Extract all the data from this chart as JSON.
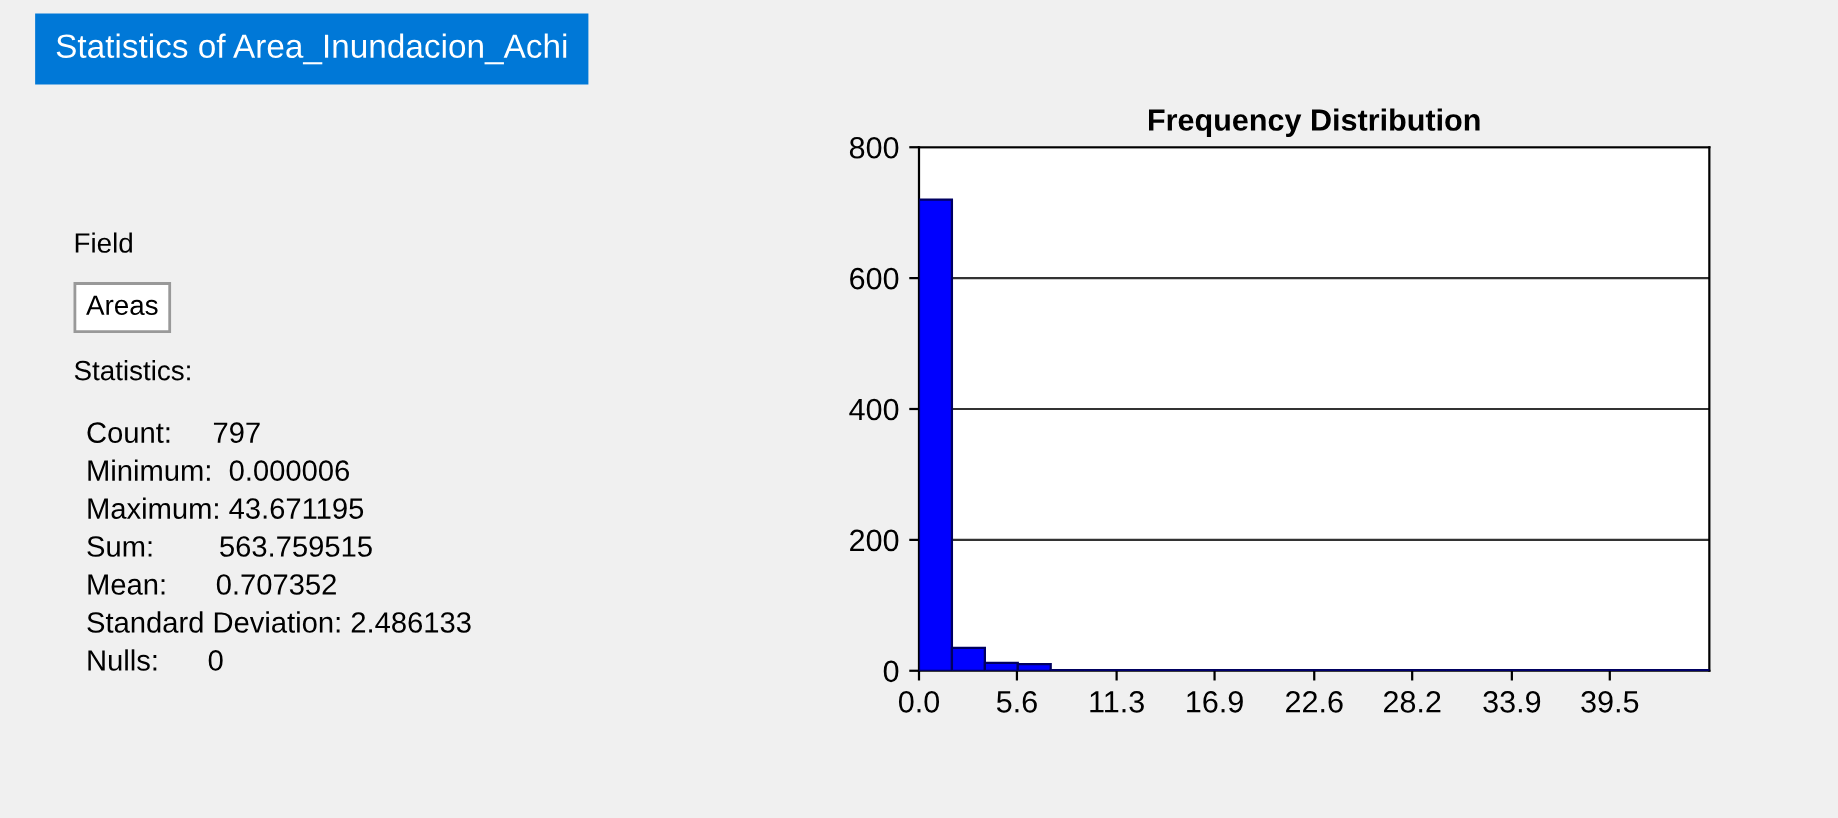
{
  "chart_data": [
    {
      "type": "other",
      "title": "Statistics of Area_Inundacion_Achi",
      "annotations": [
        "Field",
        "Areas",
        "Statistics:",
        "Count:     797",
        "Minimum:  0.000006",
        "Maximum: 43.671195",
        "Sum:        563.759515",
        "Mean:      0.707352",
        "Standard Deviation: 2.486133",
        "Nulls:      0"
      ]
    },
    {
      "type": "histogram",
      "title": "Frequency Distribution",
      "color": "#0000ff",
      "bins": [
        0,
        1.883,
        3.766,
        5.649,
        7.532,
        9.415,
        11.298,
        13.181,
        15.064,
        16.947,
        18.83,
        20.713,
        22.596,
        24.479,
        26.362,
        28.245,
        30.128,
        32.011,
        33.894,
        35.777,
        37.66,
        39.543,
        41.426,
        43.309,
        45.192
      ],
      "values": [
        720,
        35,
        12,
        10,
        1,
        1,
        1,
        1,
        1,
        1,
        1,
        1,
        1,
        1,
        1,
        1,
        1,
        1,
        1,
        1,
        1,
        1,
        1,
        1
      ],
      "xlim": [
        0,
        45.192
      ],
      "ylim": [
        0,
        800
      ],
      "xticks": [
        {
          "value": 0,
          "label": "0.0"
        },
        5.6,
        11.3,
        16.9,
        22.6,
        28.2,
        33.9,
        39.5
      ],
      "yticks": [
        0,
        200,
        400,
        600,
        800
      ],
      "grid": "y"
    }
  ]
}
